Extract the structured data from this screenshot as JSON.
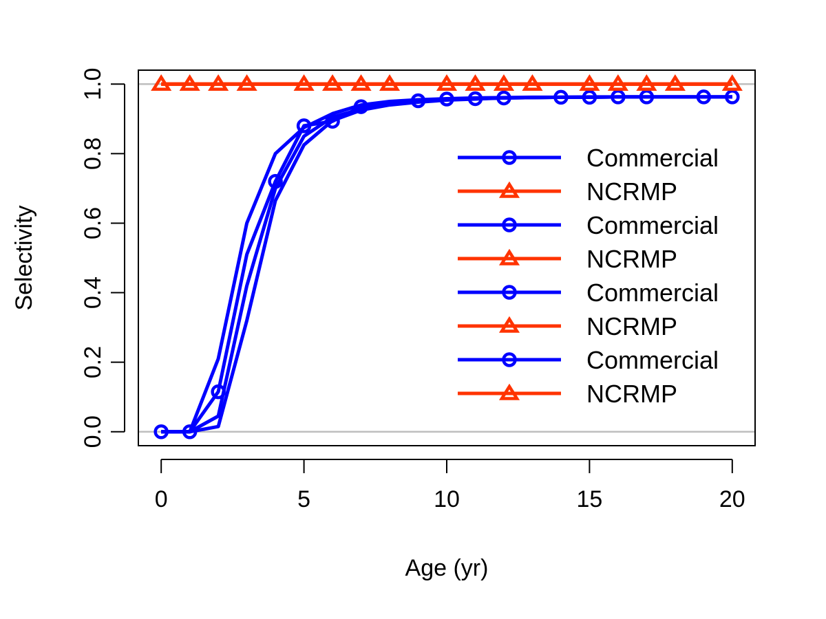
{
  "chart_data": {
    "type": "line",
    "title": "",
    "xlabel": "Age (yr)",
    "ylabel": "Selectivity",
    "xlim": [
      -0.8,
      20.8
    ],
    "ylim": [
      -0.04,
      1.04
    ],
    "xticks": [
      0,
      5,
      10,
      15,
      20
    ],
    "yticks": [
      0.0,
      0.2,
      0.4,
      0.6,
      0.8,
      1.0
    ],
    "ytick_labels": [
      "0.0",
      "0.2",
      "0.4",
      "0.6",
      "0.8",
      "1.0"
    ],
    "reference_lines": [
      0,
      1
    ],
    "grid": false,
    "legend_position": "right",
    "colors": {
      "commercial": "#0000ff",
      "ncrmp": "#ff3300",
      "reference": "#bebebe"
    },
    "series": [
      {
        "name": "Commercial",
        "marker": "circle",
        "color": "#0000ff",
        "x": [
          0,
          1,
          2,
          3,
          4,
          5,
          6,
          7,
          8,
          9,
          10,
          11,
          12,
          13,
          14,
          15,
          16,
          17,
          18,
          19,
          20
        ],
        "y": [
          0,
          0,
          0.21,
          0.6,
          0.8,
          0.875,
          0.915,
          0.94,
          0.95,
          0.955,
          0.958,
          0.96,
          0.961,
          0.962,
          0.962,
          0.963,
          0.963,
          0.963,
          0.963,
          0.963,
          0.963
        ]
      },
      {
        "name": "NCRMP",
        "marker": "triangle",
        "color": "#ff3300",
        "x": [
          0,
          1,
          2,
          3,
          4,
          5,
          6,
          7,
          8,
          9,
          10,
          11,
          12,
          13,
          14,
          15,
          16,
          17,
          18,
          19,
          20
        ],
        "y": [
          1,
          1,
          1,
          1,
          1,
          1,
          1,
          1,
          1,
          1,
          1,
          1,
          1,
          1,
          1,
          1,
          1,
          1,
          1,
          1,
          1
        ]
      },
      {
        "name": "Commercial",
        "marker": "circle",
        "color": "#0000ff",
        "x": [
          0,
          1,
          2,
          3,
          4,
          5,
          6,
          7,
          8,
          9,
          10,
          11,
          12,
          13,
          14,
          15,
          16,
          17,
          18,
          19,
          20
        ],
        "y": [
          0,
          0,
          0.115,
          0.51,
          0.72,
          0.88,
          0.893,
          0.935,
          0.945,
          0.952,
          0.957,
          0.958,
          0.96,
          0.961,
          0.962,
          0.962,
          0.963,
          0.963,
          0.963,
          0.963,
          0.963
        ]
      },
      {
        "name": "NCRMP",
        "marker": "triangle",
        "color": "#ff3300",
        "x": [
          0,
          1,
          2,
          3,
          4,
          5,
          6,
          7,
          8,
          9,
          10,
          11,
          12,
          13,
          14,
          15,
          16,
          17,
          18,
          19,
          20
        ],
        "y": [
          1,
          1,
          1,
          1,
          1,
          1,
          1,
          1,
          1,
          1,
          1,
          1,
          1,
          1,
          1,
          1,
          1,
          1,
          1,
          1,
          1
        ]
      },
      {
        "name": "Commercial",
        "marker": "circle",
        "color": "#0000ff",
        "x": [
          0,
          1,
          2,
          3,
          4,
          5,
          6,
          7,
          8,
          9,
          10,
          11,
          12,
          13,
          14,
          15,
          16,
          17,
          18,
          19,
          20
        ],
        "y": [
          0,
          0,
          0.045,
          0.42,
          0.7,
          0.85,
          0.905,
          0.928,
          0.942,
          0.95,
          0.955,
          0.958,
          0.96,
          0.961,
          0.962,
          0.962,
          0.963,
          0.963,
          0.963,
          0.963,
          0.963
        ]
      },
      {
        "name": "NCRMP",
        "marker": "triangle",
        "color": "#ff3300",
        "x": [
          0,
          1,
          2,
          3,
          4,
          5,
          6,
          7,
          8,
          9,
          10,
          11,
          12,
          13,
          14,
          15,
          16,
          17,
          18,
          19,
          20
        ],
        "y": [
          1,
          1,
          1,
          1,
          1,
          1,
          1,
          1,
          1,
          1,
          1,
          1,
          1,
          1,
          1,
          1,
          1,
          1,
          1,
          1,
          1
        ]
      },
      {
        "name": "Commercial",
        "marker": "circle",
        "color": "#0000ff",
        "x": [
          0,
          1,
          2,
          3,
          4,
          5,
          6,
          7,
          8,
          9,
          10,
          11,
          12,
          13,
          14,
          15,
          16,
          17,
          18,
          19,
          20
        ],
        "y": [
          0,
          0,
          0.015,
          0.32,
          0.665,
          0.825,
          0.895,
          0.925,
          0.94,
          0.948,
          0.954,
          0.957,
          0.96,
          0.961,
          0.962,
          0.962,
          0.963,
          0.963,
          0.963,
          0.963,
          0.963
        ]
      },
      {
        "name": "NCRMP",
        "marker": "triangle",
        "color": "#ff3300",
        "x": [
          0,
          1,
          2,
          3,
          4,
          5,
          6,
          7,
          8,
          9,
          10,
          11,
          12,
          13,
          14,
          15,
          16,
          17,
          18,
          19,
          20
        ],
        "y": [
          1,
          1,
          1,
          1,
          1,
          1,
          1,
          1,
          1,
          1,
          1,
          1,
          1,
          1,
          1,
          1,
          1,
          1,
          1,
          1,
          1
        ]
      }
    ],
    "marker_points": {
      "commercial": {
        "x": [
          0,
          1,
          2,
          4,
          5,
          6,
          7,
          9,
          10,
          11,
          12,
          14,
          15,
          16,
          17,
          19,
          20
        ],
        "y": [
          0,
          0,
          0.115,
          0.72,
          0.88,
          0.893,
          0.935,
          0.952,
          0.957,
          0.958,
          0.96,
          0.962,
          0.962,
          0.963,
          0.963,
          0.963,
          0.963
        ]
      },
      "ncrmp": {
        "x": [
          0,
          1,
          2,
          3,
          5,
          6,
          7,
          8,
          10,
          11,
          12,
          13,
          15,
          16,
          17,
          18,
          20
        ],
        "y": [
          1,
          1,
          1,
          1,
          1,
          1,
          1,
          1,
          1,
          1,
          1,
          1,
          1,
          1,
          1,
          1,
          1
        ]
      }
    }
  }
}
